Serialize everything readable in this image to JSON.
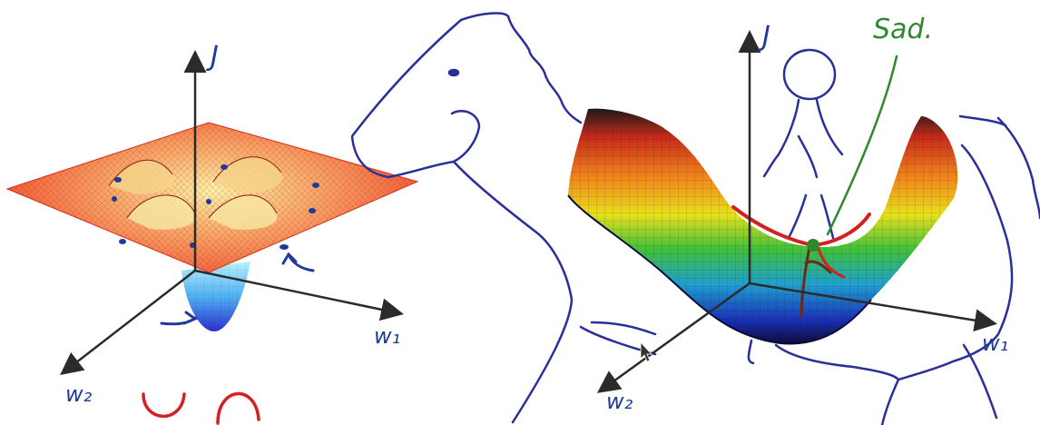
{
  "labels": {
    "left_axis_j": "J",
    "left_axis_w1": "w₁",
    "left_axis_w2": "w₂",
    "right_axis_j": "J",
    "right_axis_w1": "w₁",
    "right_axis_w2": "w₂",
    "saddle_note": "Sad."
  },
  "colors": {
    "ink_blue": "#2a2f9a",
    "ink_red": "#d42020",
    "ink_green": "#2c8a2c",
    "axis": "#2b2b2b",
    "bg": "#ffffff"
  },
  "icons": {
    "cursor": "mouse-pointer-icon"
  }
}
